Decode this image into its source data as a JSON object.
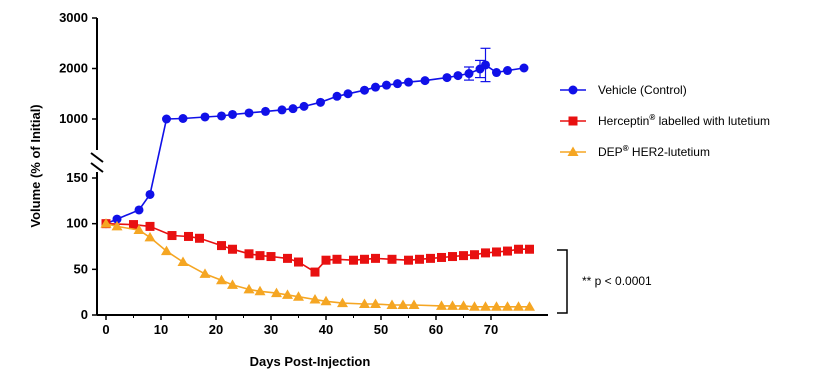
{
  "chart_data": {
    "type": "line",
    "title": "",
    "xlabel": "Days Post-Injection",
    "ylabel": "Volume (% of Initial)",
    "x_ticks": [
      "0",
      "10",
      "20",
      "30",
      "40",
      "50",
      "60",
      "70"
    ],
    "y_ticks_lower": [
      "0",
      "50",
      "100",
      "150"
    ],
    "y_ticks_upper": [
      "1000",
      "2000",
      "3000"
    ],
    "xlim": [
      -1,
      79
    ],
    "ylim_lower": [
      0,
      160
    ],
    "ylim_upper": [
      160,
      3000
    ],
    "y_axis_break": true,
    "grid": false,
    "legend_position": "right",
    "series": [
      {
        "name_main": "Vehicle (Control)",
        "name_sup": "",
        "name_rest": "",
        "color": "#1010e8",
        "marker": "circle",
        "x": [
          0,
          2,
          6,
          8,
          11,
          14,
          18,
          21,
          23,
          26,
          29,
          32,
          34,
          36,
          39,
          42,
          44,
          47,
          49,
          51,
          53,
          55,
          58,
          62,
          64,
          66,
          68,
          69,
          71,
          73,
          76
        ],
        "y": [
          100,
          105,
          115,
          132,
          1000,
          1010,
          1040,
          1060,
          1090,
          1120,
          1150,
          1180,
          1205,
          1250,
          1330,
          1450,
          1500,
          1570,
          1630,
          1670,
          1700,
          1730,
          1760,
          1820,
          1860,
          1900,
          1990,
          2070,
          1920,
          1960,
          2010
        ],
        "error_bars": [
          {
            "x": 66,
            "y": 1900,
            "err": 130
          },
          {
            "x": 68,
            "y": 1990,
            "err": 170
          },
          {
            "x": 69,
            "y": 2070,
            "err": 330
          }
        ]
      },
      {
        "name_main": "Herceptin",
        "name_sup": "®",
        "name_rest": " labelled with lutetium",
        "color": "#e81010",
        "marker": "square",
        "x": [
          0,
          5,
          8,
          12,
          15,
          17,
          21,
          23,
          26,
          28,
          30,
          33,
          35,
          38,
          40,
          42,
          45,
          47,
          49,
          52,
          55,
          57,
          59,
          61,
          63,
          65,
          67,
          69,
          71,
          73,
          75,
          77
        ],
        "y": [
          100,
          99,
          97,
          87,
          86,
          84,
          76,
          72,
          67,
          65,
          64,
          62,
          58,
          47,
          60,
          61,
          60,
          61,
          62,
          61,
          60,
          61,
          62,
          63,
          64,
          65,
          66,
          68,
          69,
          70,
          72,
          72
        ],
        "error_bars": []
      },
      {
        "name_main": "DEP",
        "name_sup": "®",
        "name_rest": " HER2-lutetium",
        "color": "#f5a623",
        "marker": "triangle",
        "x": [
          0,
          2,
          6,
          8,
          11,
          14,
          18,
          21,
          23,
          26,
          28,
          31,
          33,
          35,
          38,
          40,
          43,
          47,
          49,
          52,
          54,
          56,
          61,
          63,
          65,
          67,
          69,
          71,
          73,
          75,
          77
        ],
        "y": [
          100,
          97,
          93,
          85,
          70,
          58,
          45,
          38,
          33,
          28,
          26,
          24,
          22,
          20,
          17,
          15,
          13,
          12,
          12,
          11,
          11,
          11,
          10,
          10,
          10,
          9,
          9,
          9,
          9,
          9,
          9
        ],
        "error_bars": []
      }
    ],
    "annotation": "** p < 0.0001"
  }
}
